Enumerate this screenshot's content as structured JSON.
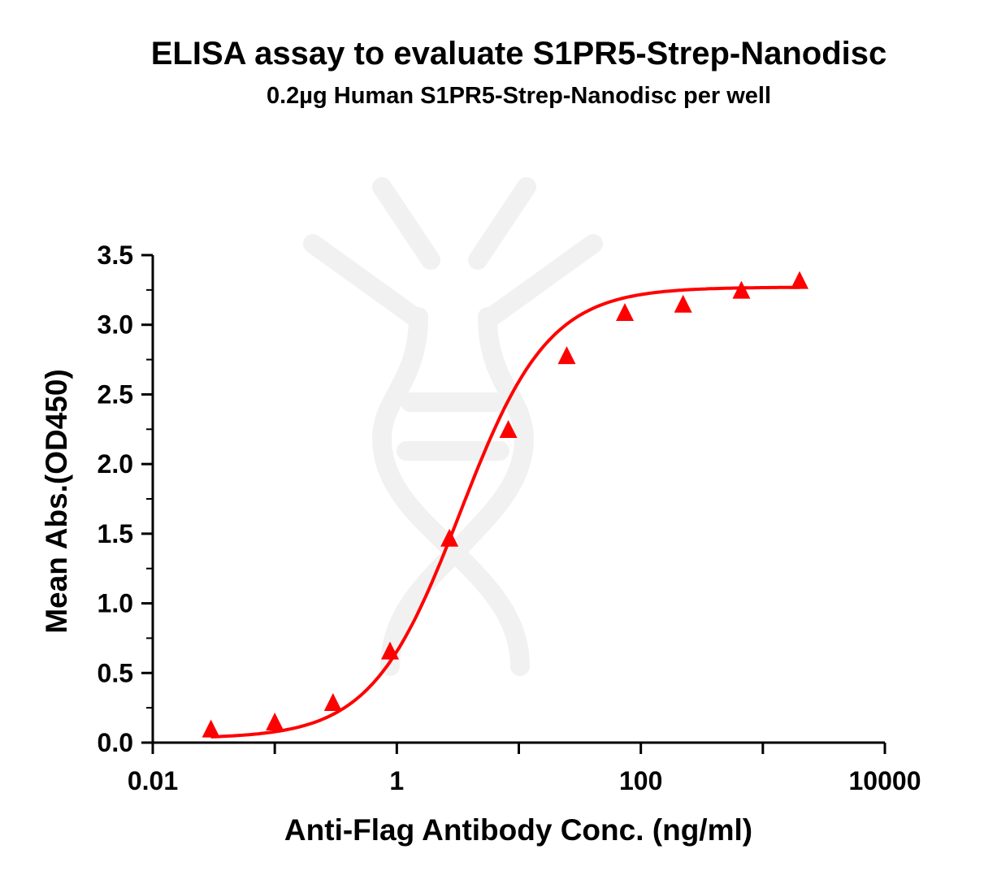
{
  "chart_data": {
    "type": "scatter",
    "title": "ELISA assay to evaluate S1PR5-Strep-Nanodisc",
    "subtitle": "0.2µg Human S1PR5-Strep-Nanodisc per well",
    "xlabel": "Anti-Flag Antibody Conc. (ng/ml)",
    "ylabel": "Mean Abs.(OD450)",
    "x_scale": "log10",
    "xlim": [
      0.01,
      10000
    ],
    "ylim": [
      0,
      3.5
    ],
    "x_ticks": [
      "0.01",
      "1",
      "100",
      "10000"
    ],
    "y_ticks": [
      "0.0",
      "0.5",
      "1.0",
      "1.5",
      "2.0",
      "2.5",
      "3.0",
      "3.5"
    ],
    "grid": false,
    "legend": "none",
    "series": [
      {
        "marker": "triangle",
        "color": "#ff0000",
        "fit": "4PL sigmoid curve",
        "x": [
          0.03,
          0.1,
          0.3,
          0.88,
          2.7,
          8.2,
          24.7,
          74,
          222,
          667,
          2000
        ],
        "y": [
          0.09,
          0.14,
          0.28,
          0.65,
          1.46,
          2.24,
          2.77,
          3.08,
          3.14,
          3.24,
          3.31
        ]
      }
    ]
  }
}
